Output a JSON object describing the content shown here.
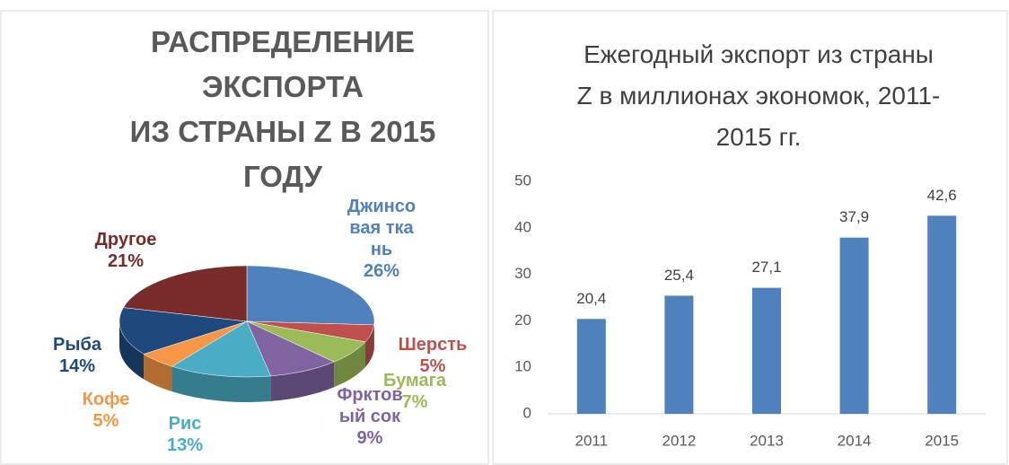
{
  "chart_data": [
    {
      "type": "pie",
      "title": "РАСПРЕДЕЛЕНИЕ\nЭКСПОРТА\nИЗ СТРАНЫ Z В 2015\nГОДУ",
      "categories": [
        "Джинсовая ткань",
        "Шерсть",
        "Бумага",
        "Фрктовый сок",
        "Рис",
        "Кофе",
        "Рыба",
        "Другое"
      ],
      "values": [
        26,
        5,
        7,
        9,
        13,
        5,
        14,
        21
      ],
      "value_labels": [
        "26%",
        "5%",
        "7%",
        "9%",
        "13%",
        "5%",
        "14%",
        "21%"
      ],
      "colors": [
        "#4f81bd",
        "#c0504d",
        "#9bbb59",
        "#8064a2",
        "#4bacc6",
        "#f79646",
        "#1f497d",
        "#772c2a"
      ]
    },
    {
      "type": "bar",
      "title": "Ежегодный экспорт из страны Z в миллионах экономок, 2011-2015 гг.",
      "categories": [
        "2011",
        "2012",
        "2013",
        "2014",
        "2015"
      ],
      "values": [
        20.4,
        25.4,
        27.1,
        37.9,
        42.6
      ],
      "value_labels": [
        "20,4",
        "25,4",
        "27,1",
        "37,9",
        "42,6"
      ],
      "color": "#4f81bd",
      "ylim": [
        0,
        50
      ],
      "yticks": [
        0,
        10,
        20,
        30,
        40,
        50
      ],
      "grid": false
    }
  ]
}
